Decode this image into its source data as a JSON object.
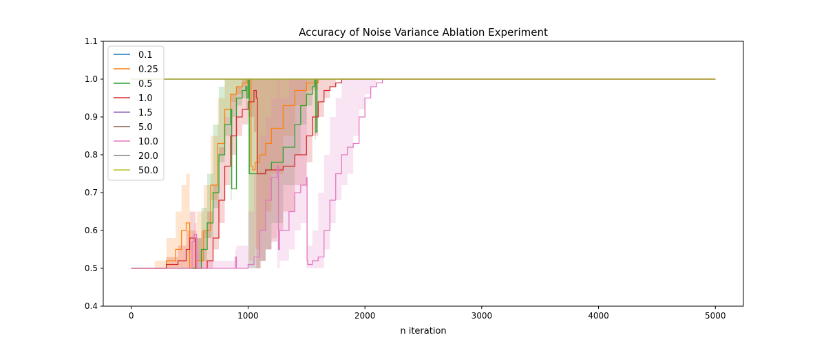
{
  "chart_data": {
    "type": "line",
    "title": "Accuracy of Noise Variance Ablation Experiment",
    "xlabel": "n iteration",
    "ylabel": "",
    "xlim": [
      -240,
      5240
    ],
    "ylim": [
      0.4,
      1.1
    ],
    "xticks": [
      "0",
      "1000",
      "2000",
      "3000",
      "4000",
      "5000"
    ],
    "xtick_values": [
      0,
      1000,
      2000,
      3000,
      4000,
      5000
    ],
    "yticks": [
      "0.4",
      "0.5",
      "0.6",
      "0.7",
      "0.8",
      "0.9",
      "1.0",
      "1.1"
    ],
    "ytick_values": [
      0.4,
      0.5,
      0.6,
      0.7,
      0.8,
      0.9,
      1.0,
      1.1
    ],
    "grid": false,
    "legend_position": "top-left",
    "series": [
      {
        "name": "0.1",
        "color": "#1f77b4",
        "x": [
          0,
          5000
        ],
        "y": [
          1.0,
          1.0
        ],
        "lower": [],
        "upper": []
      },
      {
        "name": "0.25",
        "color": "#ff7f0e",
        "x": [
          0,
          200,
          300,
          380,
          430,
          470,
          500,
          560,
          620,
          680,
          740,
          800,
          850,
          900,
          950,
          990,
          1010,
          1025,
          1040,
          1060,
          1100,
          1150,
          1200,
          1300,
          1400,
          1500,
          1600,
          1700,
          1800,
          2000,
          5000
        ],
        "y": [
          0.5,
          0.5,
          0.52,
          0.55,
          0.6,
          0.62,
          0.5,
          0.52,
          0.6,
          0.72,
          0.83,
          0.92,
          0.96,
          0.98,
          0.99,
          1.0,
          1.0,
          0.77,
          0.76,
          0.78,
          0.8,
          0.83,
          0.87,
          0.93,
          0.97,
          0.99,
          1.0,
          1.0,
          1.0,
          1.0,
          1.0
        ],
        "lower": [
          0.5,
          0.5,
          0.5,
          0.5,
          0.5,
          0.5,
          0.5,
          0.5,
          0.52,
          0.58,
          0.68,
          0.8,
          0.9,
          0.94,
          0.96,
          0.98,
          0.98,
          0.52,
          0.52,
          0.53,
          0.55,
          0.6,
          0.65,
          0.75,
          0.85,
          0.93,
          0.97,
          1.0,
          1.0,
          1.0,
          1.0
        ],
        "upper": [
          0.5,
          0.52,
          0.58,
          0.65,
          0.72,
          0.75,
          0.6,
          0.65,
          0.72,
          0.85,
          0.95,
          1.0,
          1.0,
          1.0,
          1.0,
          1.0,
          1.0,
          1.0,
          1.0,
          1.0,
          1.0,
          1.0,
          1.0,
          1.0,
          1.0,
          1.0,
          1.0,
          1.0,
          1.0,
          1.0,
          1.0
        ]
      },
      {
        "name": "0.5",
        "color": "#2ca02c",
        "x": [
          0,
          400,
          450,
          480,
          490,
          560,
          600,
          650,
          700,
          750,
          800,
          850,
          860,
          900,
          950,
          980,
          990,
          1000,
          1010,
          1100,
          1150,
          1200,
          1300,
          1400,
          1450,
          1500,
          1550,
          1570,
          1580,
          1590,
          1650,
          1700,
          5000
        ],
        "y": [
          0.5,
          0.5,
          0.5,
          0.5,
          0.5,
          0.5,
          0.55,
          0.62,
          0.7,
          0.8,
          0.88,
          0.92,
          0.71,
          0.95,
          0.97,
          0.98,
          0.95,
          1.0,
          0.75,
          0.75,
          0.76,
          0.78,
          0.82,
          0.88,
          0.93,
          0.96,
          0.98,
          1.0,
          0.86,
          1.0,
          1.0,
          1.0,
          1.0
        ],
        "lower": [
          0.5,
          0.5,
          0.5,
          0.5,
          0.5,
          0.5,
          0.5,
          0.52,
          0.58,
          0.66,
          0.78,
          0.85,
          0.68,
          0.9,
          0.93,
          0.95,
          0.92,
          0.98,
          0.5,
          0.5,
          0.52,
          0.55,
          0.62,
          0.72,
          0.8,
          0.88,
          0.93,
          0.98,
          0.84,
          1.0,
          1.0,
          1.0,
          1.0
        ],
        "upper": [
          0.5,
          0.5,
          0.5,
          0.5,
          0.5,
          0.58,
          0.66,
          0.75,
          0.88,
          0.98,
          1.0,
          1.0,
          1.0,
          1.0,
          1.0,
          1.0,
          1.0,
          1.0,
          1.0,
          1.0,
          1.0,
          1.0,
          1.0,
          1.0,
          1.0,
          1.0,
          1.0,
          1.0,
          1.0,
          1.0,
          1.0,
          1.0,
          1.0
        ]
      },
      {
        "name": "1.0",
        "color": "#d62728",
        "x": [
          0,
          200,
          300,
          400,
          470,
          500,
          550,
          600,
          650,
          700,
          750,
          800,
          850,
          900,
          950,
          1000,
          1050,
          1070,
          1080,
          1110,
          1150,
          1200,
          1250,
          1300,
          1400,
          1500,
          1550,
          1600,
          1650,
          1700,
          1750,
          1800,
          5000
        ],
        "y": [
          0.5,
          0.5,
          0.51,
          0.52,
          0.55,
          0.58,
          0.5,
          0.5,
          0.52,
          0.58,
          0.68,
          0.77,
          0.85,
          0.9,
          0.92,
          0.94,
          0.97,
          0.95,
          0.75,
          0.75,
          0.76,
          0.76,
          0.76,
          0.77,
          0.8,
          0.85,
          0.9,
          0.94,
          0.97,
          0.98,
          0.99,
          1.0,
          1.0
        ],
        "lower": [
          0.5,
          0.5,
          0.5,
          0.5,
          0.5,
          0.5,
          0.5,
          0.5,
          0.5,
          0.5,
          0.55,
          0.62,
          0.72,
          0.8,
          0.85,
          0.88,
          0.9,
          0.86,
          0.5,
          0.5,
          0.52,
          0.55,
          0.57,
          0.6,
          0.65,
          0.72,
          0.78,
          0.85,
          0.9,
          0.95,
          0.98,
          1.0,
          1.0
        ],
        "upper": [
          0.5,
          0.5,
          0.53,
          0.56,
          0.6,
          0.65,
          0.58,
          0.6,
          0.65,
          0.72,
          0.82,
          0.9,
          0.96,
          0.98,
          1.0,
          1.0,
          1.0,
          1.0,
          1.0,
          1.0,
          1.0,
          1.0,
          1.0,
          1.0,
          1.0,
          1.0,
          1.0,
          1.0,
          1.0,
          1.0,
          1.0,
          1.0,
          1.0
        ]
      },
      {
        "name": "1.5",
        "color": "#9467bd",
        "x": [
          0,
          5000
        ],
        "y": [
          1.0,
          1.0
        ],
        "lower": [],
        "upper": []
      },
      {
        "name": "5.0",
        "color": "#8c564b",
        "x": [
          0,
          5000
        ],
        "y": [
          1.0,
          1.0
        ],
        "lower": [],
        "upper": []
      },
      {
        "name": "10.0",
        "color": "#e377c2",
        "x": [
          0,
          500,
          520,
          540,
          560,
          600,
          700,
          880,
          890,
          900,
          1000,
          1050,
          1100,
          1150,
          1200,
          1250,
          1260,
          1270,
          1350,
          1400,
          1450,
          1500,
          1505,
          1510,
          1550,
          1600,
          1650,
          1700,
          1750,
          1800,
          1850,
          1900,
          1950,
          2000,
          2050,
          2100,
          2150,
          2200,
          5000
        ],
        "y": [
          0.5,
          0.5,
          0.57,
          0.59,
          0.5,
          0.5,
          0.5,
          0.5,
          0.53,
          0.5,
          0.51,
          0.53,
          0.6,
          0.68,
          0.74,
          0.77,
          0.55,
          0.6,
          0.65,
          0.7,
          0.72,
          0.74,
          0.52,
          0.51,
          0.52,
          0.53,
          0.6,
          0.68,
          0.75,
          0.8,
          0.82,
          0.83,
          0.9,
          0.95,
          0.98,
          0.99,
          1.0,
          1.0,
          1.0
        ],
        "lower": [
          0.5,
          0.5,
          0.5,
          0.5,
          0.5,
          0.5,
          0.5,
          0.5,
          0.5,
          0.5,
          0.5,
          0.5,
          0.5,
          0.52,
          0.55,
          0.58,
          0.5,
          0.5,
          0.52,
          0.55,
          0.6,
          0.62,
          0.5,
          0.5,
          0.5,
          0.5,
          0.5,
          0.55,
          0.62,
          0.68,
          0.72,
          0.75,
          0.85,
          0.92,
          0.96,
          0.98,
          1.0,
          1.0,
          1.0
        ],
        "upper": [
          0.5,
          0.5,
          0.6,
          0.62,
          0.55,
          0.52,
          0.52,
          0.52,
          0.55,
          0.56,
          0.65,
          0.75,
          0.85,
          0.9,
          0.95,
          1.0,
          1.0,
          0.95,
          1.0,
          1.0,
          1.0,
          1.0,
          0.6,
          0.56,
          0.6,
          0.7,
          0.8,
          0.9,
          0.95,
          1.0,
          1.0,
          1.0,
          1.0,
          1.0,
          1.0,
          1.0,
          1.0,
          1.0,
          1.0
        ]
      },
      {
        "name": "20.0",
        "color": "#7f7f7f",
        "x": [
          0,
          5000
        ],
        "y": [
          1.0,
          1.0
        ],
        "lower": [],
        "upper": []
      },
      {
        "name": "50.0",
        "color": "#bcbd22",
        "x": [
          0,
          5000
        ],
        "y": [
          1.0,
          1.0
        ],
        "lower": [],
        "upper": []
      }
    ]
  }
}
